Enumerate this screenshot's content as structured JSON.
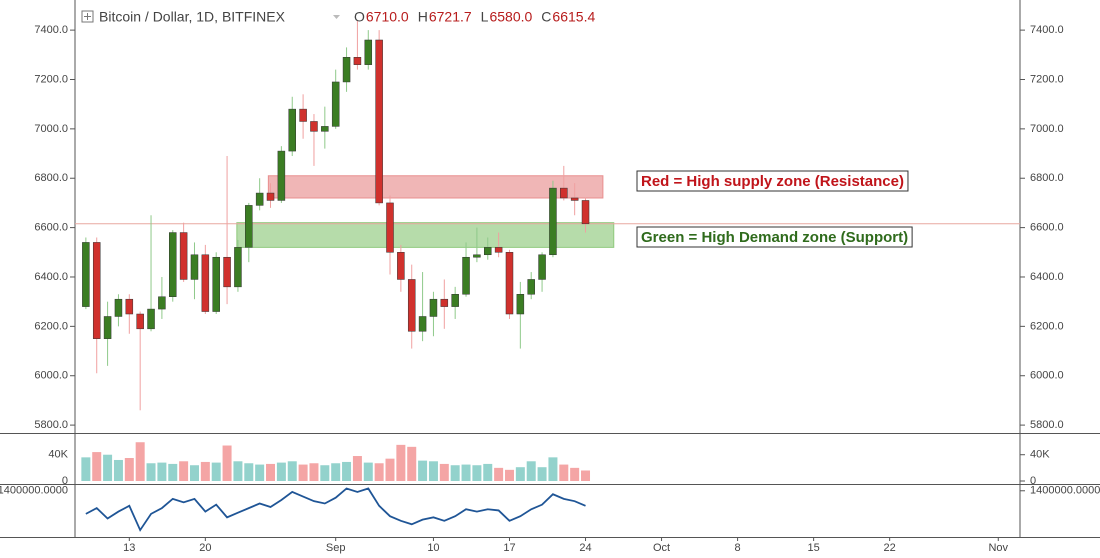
{
  "chart_data": {
    "type": "candlestick",
    "title": "Bitcoin / Dollar, 1D, BITFINEX",
    "header_values": [
      {
        "key": "O",
        "value": "6710.0"
      },
      {
        "key": "H",
        "value": "6721.7"
      },
      {
        "key": "L",
        "value": "6580.0"
      },
      {
        "key": "C",
        "value": "6615.4"
      }
    ],
    "x": [
      9,
      10,
      11,
      12,
      13,
      14,
      15,
      16,
      17,
      18,
      19,
      20,
      21,
      22,
      23,
      24,
      25,
      26,
      27,
      28,
      29,
      30,
      31,
      32,
      33,
      34,
      35,
      36,
      37,
      38,
      39,
      40,
      41,
      42,
      43,
      44,
      45,
      46,
      47,
      48,
      49,
      50,
      51,
      52,
      53,
      54,
      55
    ],
    "open": [
      6280,
      6540,
      6150,
      6240,
      6310,
      6250,
      6190,
      6270,
      6320,
      6580,
      6390,
      6490,
      6260,
      6480,
      6360,
      6520,
      6690,
      6740,
      6710,
      6910,
      7080,
      7030,
      6990,
      7010,
      7190,
      7290,
      7260,
      7360,
      6700,
      6500,
      6390,
      6180,
      6240,
      6310,
      6280,
      6330,
      6480,
      6490,
      6520,
      6500,
      6250,
      6330,
      6390,
      6490,
      6760,
      6720,
      6710
    ],
    "high": [
      6560,
      6560,
      6300,
      6330,
      6330,
      6260,
      6650,
      6400,
      6590,
      6620,
      6540,
      6530,
      6500,
      6890,
      6550,
      6700,
      6800,
      6780,
      6930,
      7130,
      7140,
      7060,
      7090,
      7240,
      7330,
      7440,
      7400,
      7400,
      6730,
      6530,
      6450,
      6420,
      6340,
      6390,
      6360,
      6540,
      6600,
      6560,
      6580,
      6510,
      6380,
      6420,
      6500,
      6790,
      6850,
      6780,
      6721.7
    ],
    "low": [
      6270,
      6010,
      6040,
      6200,
      6170,
      5860,
      6180,
      6230,
      6300,
      6380,
      6310,
      6250,
      6250,
      6290,
      6340,
      6460,
      6670,
      6680,
      6700,
      6890,
      6960,
      6850,
      6920,
      7000,
      7150,
      7240,
      7240,
      6690,
      6410,
      6340,
      6110,
      6140,
      6160,
      6190,
      6230,
      6320,
      6460,
      6470,
      6480,
      6230,
      6110,
      6310,
      6340,
      6480,
      6710,
      6650,
      6580
    ],
    "close": [
      6540,
      6150,
      6240,
      6310,
      6250,
      6190,
      6270,
      6320,
      6580,
      6390,
      6490,
      6260,
      6480,
      6360,
      6520,
      6690,
      6740,
      6710,
      6910,
      7080,
      7030,
      6990,
      7010,
      7190,
      7290,
      7260,
      7360,
      6700,
      6500,
      6390,
      6180,
      6240,
      6310,
      6280,
      6330,
      6480,
      6490,
      6520,
      6500,
      6250,
      6330,
      6390,
      6490,
      6760,
      6720,
      6710,
      6615.4
    ],
    "volume": [
      36000,
      44000,
      40000,
      32000,
      35000,
      59000,
      27000,
      28000,
      26000,
      30000,
      24000,
      29000,
      28000,
      54000,
      30000,
      27000,
      25000,
      26000,
      28000,
      30000,
      25000,
      27000,
      24000,
      27000,
      29000,
      38000,
      28000,
      27000,
      34000,
      55000,
      52000,
      31000,
      30000,
      26000,
      24000,
      25000,
      24000,
      26000,
      20000,
      17000,
      21000,
      30000,
      21000,
      36000,
      25000,
      20000,
      16000
    ],
    "indicator": [
      1200000,
      1250000,
      1160000,
      1220000,
      1270000,
      1060000,
      1200000,
      1250000,
      1330000,
      1300000,
      1330000,
      1220000,
      1280000,
      1170000,
      1210000,
      1250000,
      1290000,
      1260000,
      1320000,
      1390000,
      1350000,
      1310000,
      1290000,
      1340000,
      1420000,
      1390000,
      1420000,
      1270000,
      1180000,
      1140000,
      1110000,
      1150000,
      1170000,
      1140000,
      1180000,
      1240000,
      1220000,
      1240000,
      1230000,
      1140000,
      1180000,
      1240000,
      1280000,
      1370000,
      1330000,
      1310000,
      1270000
    ],
    "up_color": "#3b7d23",
    "down_color": "#d0312d",
    "up_volume_color": "#93d2cc",
    "down_volume_color": "#f4a5a5",
    "indicator_color": "#1f5596",
    "xlim": [
      8,
      95
    ],
    "xticks": [
      {
        "value": 13,
        "label": "13"
      },
      {
        "value": 20,
        "label": "20"
      },
      {
        "value": 32,
        "label": "Sep"
      },
      {
        "value": 41,
        "label": "10"
      },
      {
        "value": 48,
        "label": "17"
      },
      {
        "value": 55,
        "label": "24"
      },
      {
        "value": 62,
        "label": "Oct"
      },
      {
        "value": 69,
        "label": "8"
      },
      {
        "value": 76,
        "label": "15"
      },
      {
        "value": 83,
        "label": "22"
      },
      {
        "value": 93,
        "label": "Nov"
      }
    ],
    "ylim": [
      5768,
      7522
    ],
    "yticks": [
      {
        "value": 5800,
        "label": "5800.0"
      },
      {
        "value": 6000,
        "label": "6000.0"
      },
      {
        "value": 6200,
        "label": "6200.0"
      },
      {
        "value": 6400,
        "label": "6400.0"
      },
      {
        "value": 6600,
        "label": "6600.0"
      },
      {
        "value": 6800,
        "label": "6800.0"
      },
      {
        "value": 7000,
        "label": "7000.0"
      },
      {
        "value": 7200,
        "label": "7200.0"
      },
      {
        "value": 7400,
        "label": "7400.0"
      }
    ],
    "volume_ylim": [
      0,
      70000
    ],
    "volume_yticks": [
      0,
      {
        "value": 40000,
        "label": "40K"
      }
    ],
    "indicator_ylim": [
      1000000,
      1450000
    ],
    "indicator_yticks": [
      {
        "value": 1400000,
        "label": "1400000.0000"
      }
    ],
    "zones": [
      {
        "label": "Red = High supply zone (Resistance)",
        "low": 6720,
        "high": 6810,
        "from": 25.8,
        "to": 56.6,
        "color": "#e88f8f",
        "text_color": "#c0141a"
      },
      {
        "label": "Green = High Demand zone (Support)",
        "low": 6520,
        "high": 6620,
        "from": 22.9,
        "to": 57.6,
        "color": "#8fc97c",
        "text_color": "#2f6b1c"
      }
    ]
  }
}
